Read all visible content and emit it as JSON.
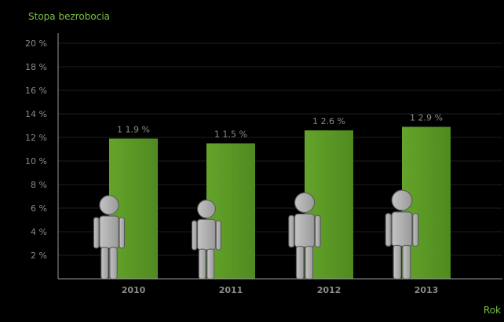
{
  "chart_data": {
    "type": "bar",
    "ylabel": "Stopa bezrobocia",
    "xlabel": "Rok",
    "categories": [
      "2010",
      "2011",
      "2012",
      "2013"
    ],
    "values": [
      11.9,
      11.5,
      12.6,
      12.9
    ],
    "value_labels": [
      "1 1.9 %",
      "1 1.5 %",
      "1 2.6 %",
      "1 2.9 %"
    ],
    "ylim": [
      0,
      20
    ],
    "yticks": [
      "2 %",
      "4 %",
      "6 %",
      "8 %",
      "10 %",
      "12 %",
      "14 %",
      "16 %",
      "18 %",
      "20 %"
    ],
    "ytick_values": [
      2,
      4,
      6,
      8,
      10,
      12,
      14,
      16,
      18,
      20
    ],
    "grid": true,
    "colors": {
      "bar": "#5a9324",
      "bar_highlight": "#6aa72e",
      "ylabel": "#79c043",
      "xlabel": "#79c043",
      "tick_text": "#8a8a8a",
      "grid": "#1e1e1e",
      "axis": "#9a9a9a",
      "figure": "#b8b8b8"
    },
    "icons": [
      "person-figure-icon",
      "person-figure-icon",
      "person-figure-icon",
      "person-figure-icon"
    ]
  }
}
